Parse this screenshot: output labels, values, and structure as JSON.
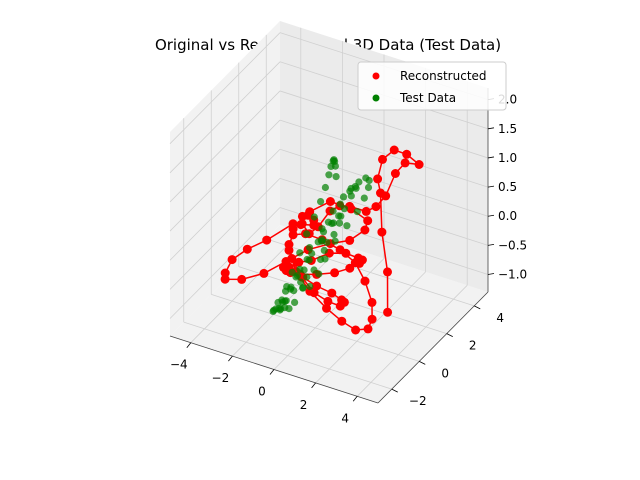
{
  "chart_data": {
    "type": "scatter",
    "projection": "3d",
    "title": "Original vs Reconstructed 3D Data (Test Data)",
    "grid": true,
    "legend_position": "upper-right",
    "axes": {
      "x": {
        "ticks": [
          -4,
          -2,
          0,
          2,
          4
        ],
        "tick_labels": [
          "−4",
          "−2",
          "0",
          "2",
          "4"
        ],
        "lim": [
          -5,
          5
        ]
      },
      "y": {
        "ticks": [
          -2,
          0,
          2,
          4
        ],
        "tick_labels": [
          "−2",
          "0",
          "2",
          "4"
        ],
        "lim": [
          -3,
          5
        ]
      },
      "z": {
        "ticks": [
          -1.0,
          -0.5,
          0.0,
          0.5,
          1.0,
          1.5,
          2.0
        ],
        "tick_labels": [
          "−1.0",
          "−0.5",
          "0.0",
          "0.5",
          "1.0",
          "1.5",
          "2.0"
        ],
        "lim": [
          -1.3,
          2.2
        ]
      }
    },
    "series": [
      {
        "name": "Reconstructed",
        "color": "#ff0000",
        "marker": "circle",
        "connected": true,
        "points": [
          [
            4.6,
            -1.7,
            -0.1
          ],
          [
            4.4,
            -1.4,
            0.5
          ],
          [
            3.6,
            -0.6,
            0.9
          ],
          [
            3.4,
            -0.4,
            1.5
          ],
          [
            3.0,
            0.0,
            1.6
          ],
          [
            3.1,
            0.2,
            1.9
          ],
          [
            3.4,
            0.6,
            2.0
          ],
          [
            3.8,
            0.9,
            1.9
          ],
          [
            4.2,
            1.2,
            1.7
          ],
          [
            3.0,
            2.0,
            1.4
          ],
          [
            2.4,
            2.2,
            1.1
          ],
          [
            1.8,
            2.4,
            0.6
          ],
          [
            1.2,
            2.6,
            0.3
          ],
          [
            0.6,
            2.8,
            0.1
          ],
          [
            -0.4,
            3.1,
            0.0
          ],
          [
            -1.2,
            3.6,
            -0.2
          ],
          [
            -2.0,
            4.1,
            -0.5
          ],
          [
            -2.7,
            4.3,
            -0.9
          ],
          [
            -3.2,
            4.4,
            -1.1
          ],
          [
            -3.6,
            4.5,
            -1.0
          ],
          [
            -3.2,
            3.8,
            -0.8
          ],
          [
            -2.6,
            3.0,
            -0.4
          ],
          [
            -1.8,
            2.2,
            -0.1
          ],
          [
            -1.0,
            1.4,
            0.1
          ],
          [
            -0.6,
            0.8,
            0.2
          ],
          [
            -1.2,
            0.2,
            0.3
          ],
          [
            -2.2,
            -0.2,
            0.0
          ],
          [
            -3.0,
            -0.4,
            -0.2
          ],
          [
            -3.6,
            -0.6,
            -0.4
          ],
          [
            -4.0,
            -0.5,
            -0.7
          ],
          [
            -4.2,
            -0.2,
            -0.9
          ],
          [
            -3.8,
            0.4,
            -1.0
          ],
          [
            -3.0,
            0.8,
            -0.9
          ],
          [
            -2.2,
            1.2,
            -0.7
          ],
          [
            -1.4,
            1.6,
            -0.5
          ],
          [
            -0.6,
            2.0,
            -0.4
          ],
          [
            0.2,
            2.2,
            -0.3
          ],
          [
            0.8,
            2.4,
            -0.1
          ],
          [
            1.2,
            2.0,
            0.2
          ],
          [
            0.8,
            1.4,
            0.5
          ],
          [
            0.2,
            0.8,
            0.7
          ],
          [
            -0.4,
            0.2,
            0.6
          ],
          [
            -0.8,
            -0.4,
            0.4
          ],
          [
            -0.6,
            -1.0,
            0.2
          ],
          [
            0.0,
            -1.4,
            0.0
          ],
          [
            0.8,
            -1.6,
            -0.2
          ],
          [
            1.6,
            -1.6,
            -0.4
          ],
          [
            2.2,
            -1.4,
            -0.6
          ],
          [
            2.6,
            -1.0,
            -0.8
          ],
          [
            2.8,
            -0.4,
            -0.9
          ],
          [
            2.6,
            0.2,
            -0.9
          ],
          [
            2.2,
            0.8,
            -0.8
          ],
          [
            1.6,
            1.2,
            -0.6
          ],
          [
            1.0,
            1.4,
            -0.4
          ],
          [
            0.4,
            1.2,
            -0.2
          ],
          [
            -0.2,
            0.8,
            0.0
          ],
          [
            -0.6,
            0.2,
            0.2
          ],
          [
            -0.8,
            -0.4,
            0.3
          ],
          [
            -0.6,
            -1.0,
            0.3
          ],
          [
            -0.2,
            -1.4,
            0.2
          ],
          [
            0.4,
            -1.6,
            0.0
          ],
          [
            1.0,
            -1.6,
            -0.2
          ],
          [
            1.4,
            -1.2,
            -0.4
          ],
          [
            1.6,
            -0.6,
            -0.6
          ],
          [
            1.4,
            0.0,
            -0.7
          ],
          [
            1.0,
            0.4,
            -0.8
          ],
          [
            0.4,
            0.6,
            -0.8
          ],
          [
            -0.2,
            0.4,
            -0.7
          ],
          [
            -0.6,
            0.0,
            -0.5
          ],
          [
            -0.8,
            -0.6,
            -0.3
          ],
          [
            -0.6,
            -1.2,
            -0.1
          ],
          [
            -0.2,
            -1.6,
            0.1
          ],
          [
            0.4,
            -1.8,
            0.3
          ],
          [
            1.0,
            -1.8,
            0.4
          ],
          [
            1.6,
            -1.4,
            0.5
          ],
          [
            2.0,
            -0.8,
            0.4
          ],
          [
            2.2,
            -0.2,
            0.2
          ],
          [
            2.0,
            0.4,
            0.0
          ],
          [
            1.6,
            0.8,
            -0.2
          ],
          [
            1.0,
            1.0,
            -0.4
          ],
          [
            0.4,
            0.8,
            -0.5
          ],
          [
            -0.2,
            0.4,
            -0.5
          ],
          [
            -0.6,
            -0.2,
            -0.4
          ],
          [
            -0.8,
            -0.8,
            -0.2
          ],
          [
            -0.6,
            -1.4,
            0.0
          ]
        ]
      },
      {
        "name": "Test Data",
        "color": "#008000",
        "marker": "circle",
        "connected": false,
        "points": [
          [
            1.4,
            -0.6,
            1.6
          ],
          [
            1.1,
            -0.2,
            1.65
          ],
          [
            0.8,
            0.2,
            1.6
          ],
          [
            0.5,
            0.6,
            1.5
          ],
          [
            0.2,
            1.0,
            1.35
          ],
          [
            -0.1,
            1.3,
            1.15
          ],
          [
            -0.4,
            1.6,
            0.9
          ],
          [
            -0.7,
            1.8,
            0.6
          ],
          [
            -1.0,
            1.9,
            0.3
          ],
          [
            -1.3,
            1.9,
            0.0
          ],
          [
            -1.6,
            1.8,
            -0.3
          ],
          [
            -1.8,
            1.6,
            -0.6
          ],
          [
            -1.9,
            1.2,
            -0.85
          ],
          [
            -1.9,
            0.8,
            -1.0
          ],
          [
            -1.8,
            0.3,
            -1.1
          ],
          [
            -1.6,
            -0.2,
            -1.1
          ],
          [
            -1.3,
            -0.6,
            -1.0
          ],
          [
            -1.0,
            -1.0,
            -0.85
          ],
          [
            -0.6,
            -1.3,
            -0.6
          ],
          [
            -0.2,
            -1.5,
            -0.3
          ],
          [
            0.2,
            -1.6,
            0.0
          ],
          [
            0.6,
            -1.5,
            0.3
          ],
          [
            1.0,
            -1.3,
            0.6
          ],
          [
            1.3,
            -1.0,
            0.9
          ],
          [
            1.6,
            -0.6,
            1.15
          ],
          [
            1.8,
            -0.2,
            1.3
          ],
          [
            1.9,
            0.3,
            1.35
          ],
          [
            1.9,
            0.8,
            1.3
          ],
          [
            1.8,
            1.2,
            1.15
          ],
          [
            1.5,
            1.6,
            0.9
          ],
          [
            1.1,
            1.9,
            0.6
          ],
          [
            0.7,
            2.0,
            0.3
          ],
          [
            0.2,
            2.0,
            0.0
          ],
          [
            -0.3,
            1.9,
            -0.3
          ],
          [
            -0.8,
            1.6,
            -0.6
          ],
          [
            -1.2,
            1.2,
            -0.85
          ],
          [
            -1.5,
            0.7,
            -1.0
          ],
          [
            -1.7,
            0.2,
            -1.1
          ],
          [
            -1.7,
            -0.3,
            -1.1
          ],
          [
            -1.5,
            -0.8,
            -1.0
          ],
          [
            -1.2,
            -1.2,
            -0.85
          ],
          [
            -0.8,
            -1.5,
            -0.6
          ],
          [
            -0.3,
            -1.7,
            -0.3
          ],
          [
            0.2,
            -1.7,
            0.0
          ],
          [
            0.7,
            -1.5,
            0.3
          ],
          [
            1.1,
            -1.2,
            0.6
          ],
          [
            1.4,
            -0.8,
            0.85
          ],
          [
            1.6,
            -0.3,
            1.0
          ],
          [
            1.6,
            0.2,
            1.1
          ],
          [
            1.5,
            0.7,
            1.1
          ],
          [
            1.2,
            1.1,
            1.0
          ],
          [
            0.8,
            1.4,
            0.85
          ],
          [
            0.3,
            1.6,
            0.6
          ],
          [
            -0.2,
            1.6,
            0.3
          ],
          [
            -0.6,
            1.4,
            0.0
          ],
          [
            -1.0,
            1.1,
            -0.3
          ],
          [
            -1.2,
            0.7,
            -0.6
          ],
          [
            -1.3,
            0.2,
            -0.8
          ],
          [
            -1.2,
            -0.3,
            -0.9
          ],
          [
            -1.0,
            -0.7,
            -0.9
          ],
          [
            -0.6,
            -1.0,
            -0.8
          ],
          [
            -0.2,
            -1.2,
            -0.6
          ],
          [
            0.2,
            -1.2,
            -0.3
          ],
          [
            0.6,
            -1.0,
            0.0
          ],
          [
            0.9,
            -0.7,
            0.3
          ],
          [
            1.1,
            -0.3,
            0.5
          ],
          [
            1.1,
            0.1,
            0.6
          ],
          [
            0.9,
            0.5,
            0.6
          ],
          [
            0.6,
            0.8,
            0.5
          ],
          [
            0.2,
            0.9,
            0.3
          ],
          [
            -0.2,
            0.8,
            0.0
          ],
          [
            -0.5,
            0.5,
            -0.2
          ],
          [
            -0.6,
            0.1,
            -0.4
          ],
          [
            -0.5,
            -0.3,
            -0.5
          ],
          [
            -0.2,
            -0.6,
            -0.5
          ],
          [
            0.2,
            -0.7,
            -0.4
          ],
          [
            0.5,
            -0.5,
            -0.2
          ],
          [
            0.6,
            -0.2,
            0.0
          ],
          [
            0.5,
            0.1,
            0.2
          ],
          [
            0.2,
            0.3,
            0.3
          ]
        ]
      }
    ]
  }
}
